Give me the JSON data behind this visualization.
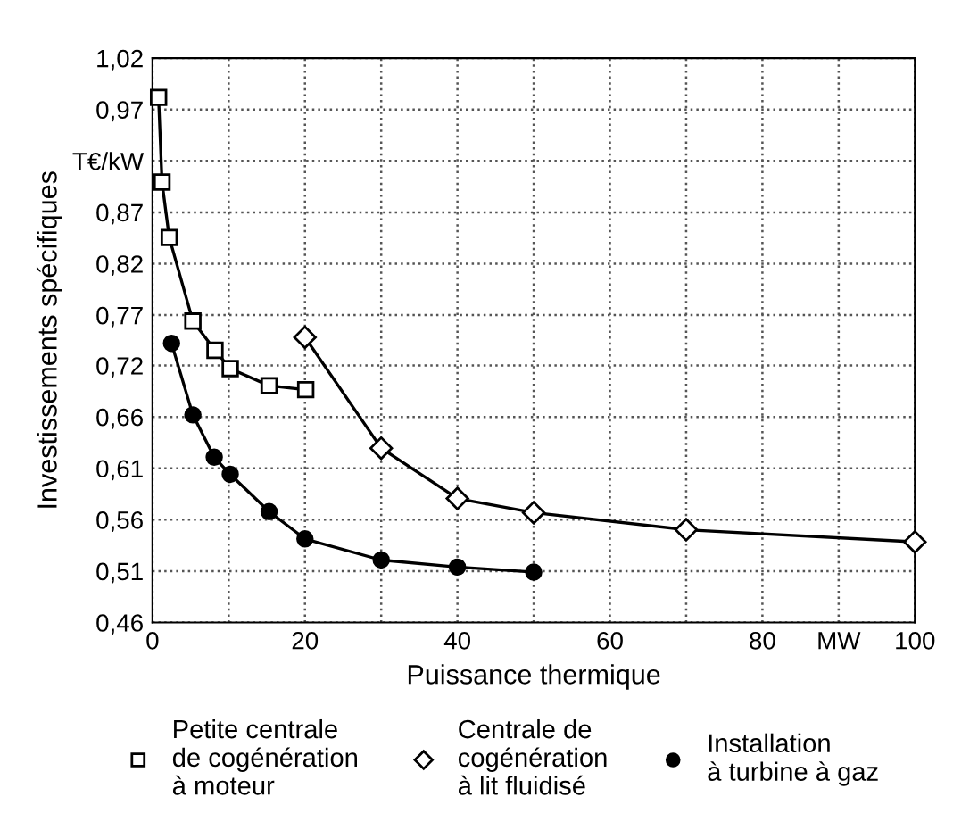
{
  "chart_data": {
    "type": "line",
    "xlabel": "Puissance thermique",
    "ylabel": "Investissements spécifiques",
    "xlim": [
      0,
      100
    ],
    "ylim": [
      0.46,
      1.02
    ],
    "xticks": [
      0,
      {
        "value": 10,
        "label": null
      },
      20,
      {
        "value": 30,
        "label": null
      },
      40,
      {
        "value": 50,
        "label": null
      },
      60,
      {
        "value": 70,
        "label": null
      },
      80,
      {
        "value": 90,
        "label": "MW"
      },
      100
    ],
    "yticks": [
      {
        "value": 0.46,
        "label": "0,46"
      },
      {
        "value": 0.511,
        "label": "0,51"
      },
      {
        "value": 0.562,
        "label": "0,56"
      },
      {
        "value": 0.613,
        "label": "0,61"
      },
      {
        "value": 0.664,
        "label": "0,66"
      },
      {
        "value": 0.715,
        "label": "0,72"
      },
      {
        "value": 0.765,
        "label": "0,77"
      },
      {
        "value": 0.816,
        "label": "0,82"
      },
      {
        "value": 0.867,
        "label": "0,87"
      },
      {
        "value": 0.918,
        "label": "T€/kW"
      },
      {
        "value": 0.969,
        "label": "0,97"
      },
      {
        "value": 1.02,
        "label": "1,02"
      }
    ],
    "grid": true,
    "legend": "bottom",
    "line_style": "solid",
    "series": [
      {
        "name": "Petite centrale\nde cogénération\nà moteur",
        "color": "#000000",
        "marker": "square",
        "x": [
          0.8,
          1.25,
          2.2,
          5.3,
          8.2,
          10.2,
          15.3,
          20.1
        ],
        "values": [
          0.981,
          0.897,
          0.842,
          0.759,
          0.73,
          0.712,
          0.695,
          0.691
        ]
      },
      {
        "name": "Centrale de\ncogénération\nà lit fluidisé",
        "color": "#000000",
        "marker": "diamond",
        "x": [
          20,
          30,
          40,
          50,
          70,
          100
        ],
        "values": [
          0.743,
          0.633,
          0.583,
          0.569,
          0.552,
          0.54
        ]
      },
      {
        "name": "Installation\nà turbine à gaz",
        "color": "#000000",
        "marker": "circle",
        "x": [
          2.5,
          5.3,
          8.1,
          10.2,
          15.3,
          20,
          30,
          40,
          50
        ],
        "values": [
          0.737,
          0.666,
          0.624,
          0.607,
          0.57,
          0.543,
          0.522,
          0.515,
          0.51
        ]
      }
    ]
  }
}
